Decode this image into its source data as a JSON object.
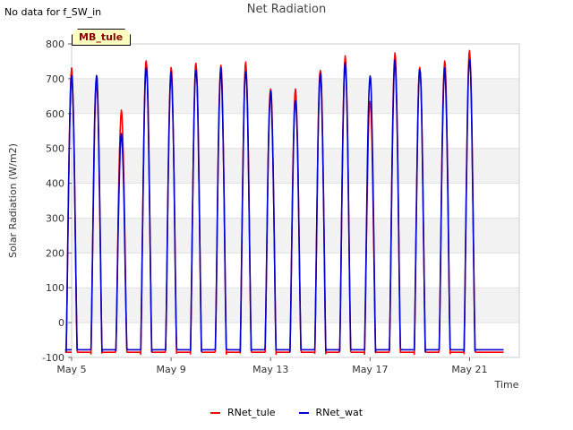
{
  "header": {
    "no_data_text": "No data for f_SW_in",
    "title": "Net Radiation",
    "site_badge": "MB_tule"
  },
  "chart_data": {
    "type": "line",
    "title": "Net Radiation",
    "xlabel": "Time",
    "ylabel": "Solar Radiation (W/m2)",
    "ylim": [
      -100,
      800
    ],
    "xlim_days": [
      5,
      23
    ],
    "yticks": [
      -100,
      0,
      100,
      200,
      300,
      400,
      500,
      600,
      700,
      800
    ],
    "xticks": [
      {
        "day": 5,
        "label": "May 5"
      },
      {
        "day": 9,
        "label": "May 9"
      },
      {
        "day": 13,
        "label": "May 13"
      },
      {
        "day": 17,
        "label": "May 17"
      },
      {
        "day": 21,
        "label": "May 21"
      }
    ],
    "grid": true,
    "legend_position": "bottom-center",
    "series": [
      {
        "name": "RNet_tule",
        "color": "#ff0000",
        "night_value": -85,
        "daily_peaks": [
          {
            "day": 5,
            "peak": 725
          },
          {
            "day": 6,
            "peak": 690
          },
          {
            "day": 7,
            "peak": 605
          },
          {
            "day": 8,
            "peak": 755
          },
          {
            "day": 9,
            "peak": 730
          },
          {
            "day": 10,
            "peak": 745
          },
          {
            "day": 11,
            "peak": 740
          },
          {
            "day": 12,
            "peak": 745
          },
          {
            "day": 13,
            "peak": 675
          },
          {
            "day": 14,
            "peak": 665
          },
          {
            "day": 15,
            "peak": 730
          },
          {
            "day": 16,
            "peak": 760
          },
          {
            "day": 17,
            "peak": 640
          },
          {
            "day": 18,
            "peak": 770
          },
          {
            "day": 19,
            "peak": 735
          },
          {
            "day": 20,
            "peak": 750
          },
          {
            "day": 21,
            "peak": 780
          }
        ]
      },
      {
        "name": "RNet_wat",
        "color": "#0000cc",
        "night_value": -78,
        "daily_peaks": [
          {
            "day": 5,
            "peak": 710
          },
          {
            "day": 6,
            "peak": 710
          },
          {
            "day": 7,
            "peak": 540
          },
          {
            "day": 8,
            "peak": 735
          },
          {
            "day": 9,
            "peak": 715
          },
          {
            "day": 10,
            "peak": 730
          },
          {
            "day": 11,
            "peak": 725
          },
          {
            "day": 12,
            "peak": 725
          },
          {
            "day": 13,
            "peak": 660
          },
          {
            "day": 14,
            "peak": 640
          },
          {
            "day": 15,
            "peak": 715
          },
          {
            "day": 16,
            "peak": 745
          },
          {
            "day": 17,
            "peak": 710
          },
          {
            "day": 18,
            "peak": 750
          },
          {
            "day": 19,
            "peak": 730
          },
          {
            "day": 20,
            "peak": 725
          },
          {
            "day": 21,
            "peak": 760
          }
        ]
      }
    ]
  }
}
